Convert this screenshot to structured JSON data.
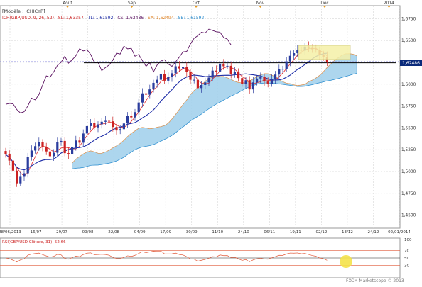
{
  "header": {
    "model_label": "[Modèle : ICHICYP]",
    "indicator_line": {
      "name": "ICH(GBP/USD, 9, 26, 52)",
      "sl": "SL: 1,63357",
      "tl": "TL: 1,61592",
      "cs": "CS: 1,62486",
      "sa": "SA: 1,62494",
      "sb": "SB: 1,61592"
    }
  },
  "footer": {
    "watermark": "FXCM Marketscope © 2013"
  },
  "colors": {
    "background": "#ffffff",
    "grid": "#d6d6d6",
    "axis_text": "#333333",
    "candle_up": "#2b3d9e",
    "candle_down": "#cc2222",
    "tenkan": "#e0262a",
    "kijun": "#1f2ea8",
    "chikou": "#5a1060",
    "kumo_bull": "#9fd0ec",
    "kumo_bear": "#f6c9a8",
    "support_line": "#000000",
    "price_badge": "#0a2a7a",
    "highlight_box": "#f5f0a8",
    "rsi_line": "#e05a3a",
    "rsi_band": "#e05a3a",
    "cursor_dot": "#f4e24a",
    "month_marker": "#e89a1a"
  },
  "chart_data": [
    {
      "type": "candlestick",
      "title": "",
      "instrument": "GBP/USD",
      "months_top": [
        "Août",
        "Sep",
        "Oct",
        "Nov",
        "Dec",
        "2014"
      ],
      "x_tick_labels": [
        "28/06/2013",
        "16/07",
        "29/07",
        "09/08",
        "22/08",
        "04/09",
        "17/09",
        "30/09",
        "11/10",
        "24/10",
        "06/11",
        "19/11",
        "02/12",
        "13/12",
        "24/12",
        "02/01/2014"
      ],
      "y_tick_labels": [
        "1,6750",
        "1,6500",
        "1,6250",
        "1,6000",
        "1,5750",
        "1,5500",
        "1,5250",
        "1,5000",
        "1,4750",
        "1,4500"
      ],
      "ylim": [
        1.44,
        1.685
      ],
      "current_price_label": "1,62486",
      "support_level": 1.6245,
      "close": [
        1.5195,
        1.5125,
        1.501,
        1.4865,
        1.494,
        1.498,
        1.5165,
        1.524,
        1.529,
        1.5335,
        1.528,
        1.523,
        1.5175,
        1.5215,
        1.5335,
        1.535,
        1.521,
        1.5195,
        1.528,
        1.5355,
        1.533,
        1.5435,
        1.552,
        1.556,
        1.5505,
        1.554,
        1.557,
        1.558,
        1.5575,
        1.551,
        1.547,
        1.5485,
        1.555,
        1.564,
        1.562,
        1.568,
        1.579,
        1.5895,
        1.588,
        1.594,
        1.6015,
        1.605,
        1.612,
        1.604,
        1.608,
        1.6125,
        1.6205,
        1.618,
        1.6195,
        1.614,
        1.605,
        1.605,
        1.5955,
        1.599,
        1.602,
        1.6075,
        1.6155,
        1.6145,
        1.6235,
        1.6205,
        1.621,
        1.612,
        1.614,
        1.607,
        1.6005,
        1.6045,
        1.594,
        1.602,
        1.6065,
        1.608,
        1.603,
        1.6005,
        1.6055,
        1.611,
        1.617,
        1.6175,
        1.626,
        1.6325,
        1.6355,
        1.6395,
        1.6385,
        1.643,
        1.6415,
        1.64,
        1.6395,
        1.6335,
        1.6315,
        1.6249
      ],
      "ichimoku": {
        "tenkan": 1.63357,
        "kijun": 1.61592,
        "chikou": 1.62486,
        "senkou_a": 1.62494,
        "senkou_b": 1.61592
      }
    },
    {
      "type": "line",
      "title": "RSI(GBP/USD Clôture, 31)",
      "label": "RSI(GBP/USD Clôture, 31): 52,66",
      "value": 52.66,
      "ylim": [
        0,
        100
      ],
      "y_tick_labels": [
        "100",
        "70",
        "50",
        "30"
      ],
      "levels": [
        70,
        50,
        30
      ]
    }
  ]
}
